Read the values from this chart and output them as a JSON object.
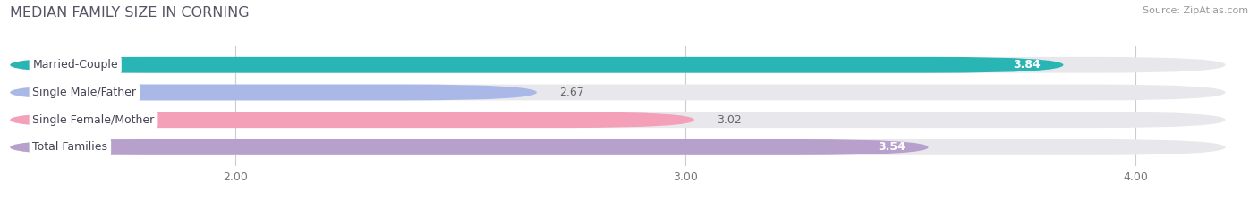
{
  "title": "MEDIAN FAMILY SIZE IN CORNING",
  "source": "Source: ZipAtlas.com",
  "categories": [
    "Married-Couple",
    "Single Male/Father",
    "Single Female/Mother",
    "Total Families"
  ],
  "values": [
    3.84,
    2.67,
    3.02,
    3.54
  ],
  "bar_colors": [
    "#2ab5b5",
    "#aab8e8",
    "#f4a0b8",
    "#b8a0cc"
  ],
  "value_inside": [
    true,
    false,
    false,
    true
  ],
  "xlim_min": 1.5,
  "xlim_max": 4.25,
  "xstart": 1.5,
  "xticks": [
    2.0,
    3.0,
    4.0
  ],
  "xtick_labels": [
    "2.00",
    "3.00",
    "4.00"
  ],
  "bar_height": 0.58,
  "background_color": "#ffffff",
  "bar_background_color": "#e8e8ec",
  "label_bg_color": "#ffffff",
  "grid_color": "#cccccc",
  "title_color": "#555566",
  "source_color": "#999999"
}
